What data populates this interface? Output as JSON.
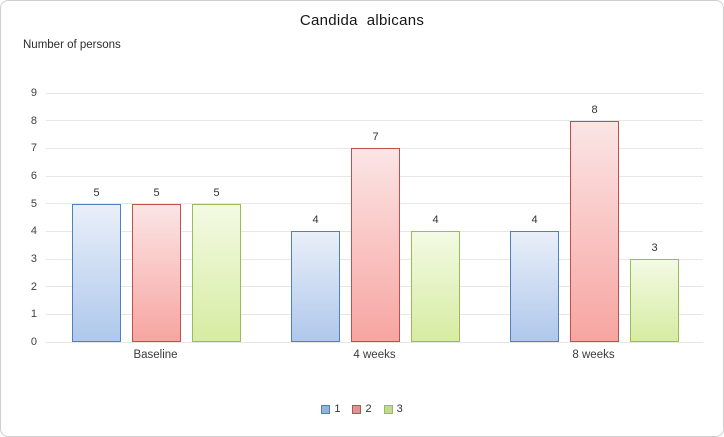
{
  "frame": {
    "background": "#ffffff",
    "border_color": "#cfcfcf"
  },
  "chart_data": {
    "type": "bar",
    "title": "Candida  albicans",
    "y_axis_title": "Number of persons",
    "categories": [
      "Baseline",
      "4 weeks",
      "8 weeks"
    ],
    "series": [
      {
        "name": "1",
        "values": [
          5,
          4,
          4
        ],
        "border_color": "#4F81BD",
        "fill_top": "#E9EFF9",
        "fill_bottom": "#AFC8EC",
        "legend_fill": "#95B3D7"
      },
      {
        "name": "2",
        "values": [
          5,
          7,
          8
        ],
        "border_color": "#C0504D",
        "fill_top": "#FBE5E5",
        "fill_bottom": "#F7A5A1",
        "legend_fill": "#D99694"
      },
      {
        "name": "3",
        "values": [
          5,
          4,
          3
        ],
        "border_color": "#9BBB59",
        "fill_top": "#F3FAE4",
        "fill_bottom": "#D7ECA2",
        "legend_fill": "#C3D69B"
      }
    ],
    "y_ticks": [
      0,
      1,
      2,
      3,
      4,
      5,
      6,
      7,
      8,
      9
    ],
    "ylim": [
      0,
      9
    ],
    "grid": true,
    "gridline_color": "#e7e7e7",
    "legend_position": "bottom",
    "data_labels": true
  }
}
